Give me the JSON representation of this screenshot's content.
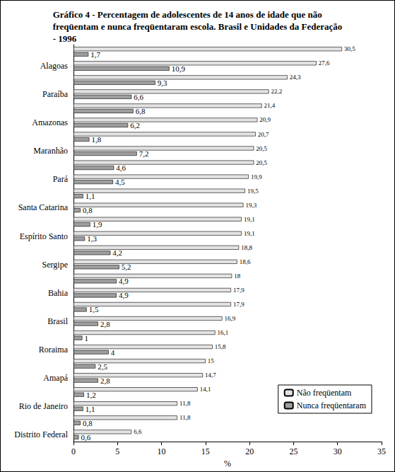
{
  "chart_data": {
    "type": "bar",
    "orientation": "horizontal",
    "title": "Gráfico 4 - Percentagem de adolescentes de 14 anos de idade que não\nfreqüentam e nunca freqüentaram escola. Brasil e Unidades da Federação\n- 1996",
    "xlabel": "%",
    "categories": [
      null,
      "Alagoas",
      null,
      "Paraíba",
      null,
      "Amazonas",
      null,
      "Maranhão",
      null,
      "Pará",
      null,
      "Santa Catarina",
      null,
      "Espírito Santo",
      null,
      "Sergipe",
      null,
      "Bahia",
      null,
      "Brasil",
      null,
      "Roraima",
      null,
      "Amapá",
      null,
      "Rio de Janeiro",
      null,
      "Distrito Federal"
    ],
    "series": [
      {
        "name": "Não freqüentam",
        "color": "#e3e3e3",
        "values": [
          30.5,
          27.6,
          24.3,
          22.2,
          21.4,
          20.9,
          20.7,
          20.5,
          20.5,
          19.9,
          19.5,
          19.3,
          19.1,
          19.1,
          18.8,
          18.6,
          18,
          17.9,
          17.9,
          16.9,
          16.1,
          15.8,
          15,
          14.7,
          14.1,
          11.8,
          11.8,
          6.6
        ],
        "value_labels": [
          "30,5",
          "27,6",
          "24,3",
          "22,2",
          "21,4",
          "20,9",
          "20,7",
          "20,5",
          "20,5",
          "19,9",
          "19,5",
          "19,3",
          "19,1",
          "19,1",
          "18,8",
          "18,6",
          "18",
          "17,9",
          "17,9",
          "16,9",
          "16,1",
          "15,8",
          "15",
          "14,7",
          "14,1",
          "11,8",
          "11,8",
          "6,6"
        ]
      },
      {
        "name": "Nunca freqüentaram",
        "color": "#9e9e9e",
        "values": [
          1.7,
          10.9,
          9.3,
          6.6,
          6.8,
          6.2,
          1.8,
          7.2,
          4.6,
          4.5,
          1.1,
          0.8,
          1.9,
          1.3,
          4.2,
          5.2,
          4.9,
          4.9,
          1.5,
          2.8,
          1,
          4,
          2.5,
          2.8,
          1.2,
          1.1,
          0.8,
          0.6
        ],
        "value_labels": [
          "1,7",
          "10,9",
          "9,3",
          "6,6",
          "6,8",
          "6,2",
          "1,8",
          "7,2",
          "4,6",
          "4,5",
          "1,1",
          "0,8",
          "1,9",
          "1,3",
          "4,2",
          "5,2",
          "4,9",
          "4,9",
          "1,5",
          "2,8",
          "1",
          "4",
          "2,5",
          "2,8",
          "1,2",
          "1,1",
          "0,8",
          "0,6"
        ]
      }
    ],
    "xlim": [
      0,
      35
    ],
    "xticks": [
      0,
      5,
      10,
      15,
      20,
      25,
      30,
      35
    ],
    "legend": "lower right",
    "data_labels": true,
    "grid": false
  }
}
